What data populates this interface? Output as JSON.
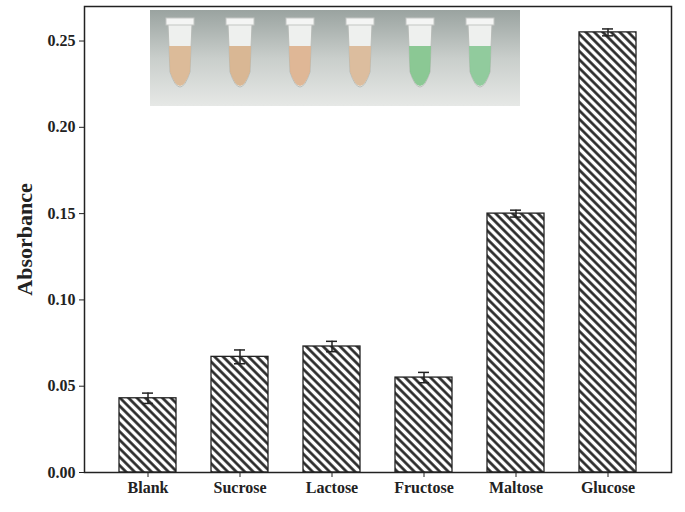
{
  "chart_data": {
    "type": "bar",
    "y_label": "Absorbance",
    "categories": [
      "Blank",
      "Sucrose",
      "Lactose",
      "Fructose",
      "Maltose",
      "Glucose"
    ],
    "values": [
      0.043,
      0.067,
      0.073,
      0.055,
      0.15,
      0.255
    ],
    "errors": [
      0.003,
      0.004,
      0.003,
      0.003,
      0.002,
      0.002
    ],
    "color": "#222222",
    "ylim": [
      0,
      0.27
    ],
    "yticks": [
      {
        "value": 0,
        "label": "0.00"
      },
      {
        "value": 0.05,
        "label": "0.05"
      },
      {
        "value": 0.1,
        "label": "0.10"
      },
      {
        "value": 0.15,
        "label": "0.15"
      },
      {
        "value": 0.2,
        "label": "0.20"
      },
      {
        "value": 0.25,
        "label": "0.25"
      }
    ],
    "grid": false
  }
}
